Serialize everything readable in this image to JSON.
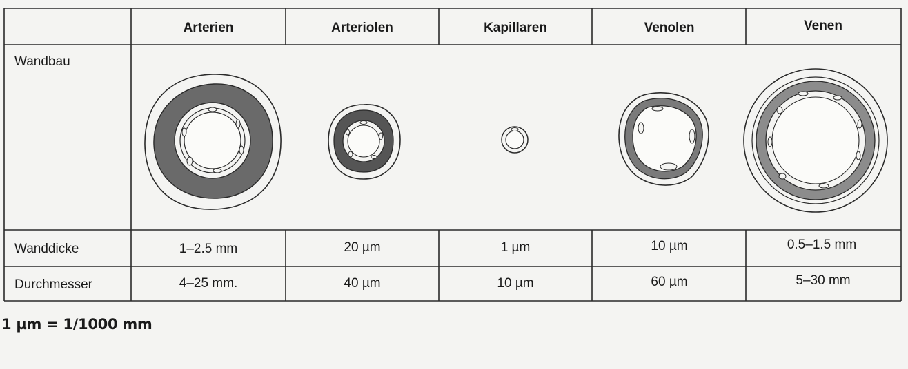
{
  "table": {
    "headers": [
      "Arterien",
      "Arteriolen",
      "Kapillaren",
      "Venolen",
      "Venen"
    ],
    "rows": [
      {
        "label": "Wandbau"
      },
      {
        "label": "Wanddicke",
        "values": [
          "1–2.5 mm",
          "20 µm",
          "1 µm",
          "10 µm",
          "0.5–1.5 mm"
        ]
      },
      {
        "label": "Durchmesser",
        "values": [
          "4–25 mm.",
          "40 µm",
          "10 µm",
          "60 µm",
          "5–30 mm"
        ]
      }
    ]
  },
  "footnote": "1 µm = 1/1000 mm",
  "colors": {
    "line": "#2a2a2a",
    "wall_dark": "#5e5e5e",
    "wall_mid": "#8a8a8a",
    "paper": "#f4f4f2"
  }
}
